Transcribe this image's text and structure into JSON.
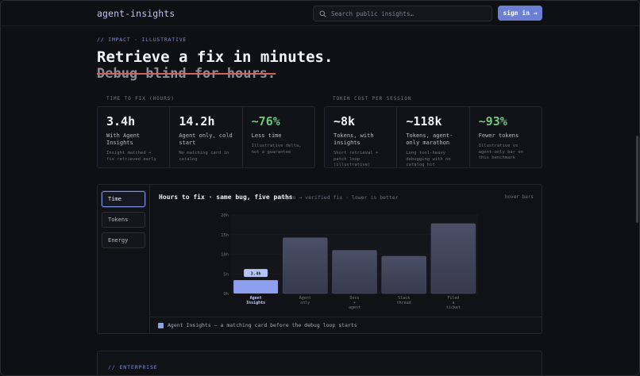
{
  "nav": {
    "brand": "agent-insights",
    "search_placeholder": "Search public insights…",
    "signin_label": "sign in →"
  },
  "hero": {
    "kicker": "// IMPACT · ILLUSTRATIVE",
    "headline": "Retrieve a fix in minutes.",
    "struck": "Debug blind for hours."
  },
  "time_section": {
    "label": "TIME TO FIX (HOURS)",
    "stats": [
      {
        "value": "3.4h",
        "label": "With Agent Insights",
        "sub": "Insight matched → fix retrieved early",
        "green": false
      },
      {
        "value": "14.2h",
        "label": "Agent only, cold start",
        "sub": "No matching card in catalog",
        "green": false
      },
      {
        "value": "~76%",
        "label": "Less time",
        "sub": "Illustrative delta, not a guarantee",
        "green": true
      }
    ]
  },
  "token_section": {
    "label": "TOKEN COST PER SESSION",
    "stats": [
      {
        "value": "~8k",
        "label": "Tokens, with insights",
        "sub": "Short retrieval + patch loop (illustrative)",
        "green": false
      },
      {
        "value": "~118k",
        "label": "Tokens, agent-only marathon",
        "sub": "Long tool-heavy debugging with no catalog hit",
        "green": false
      },
      {
        "value": "~93%",
        "label": "Fewer tokens",
        "sub": "Illustrative vs agent-only bar on this benchmark",
        "green": true
      }
    ]
  },
  "chart_panel": {
    "tabs": [
      "Time",
      "Tokens",
      "Energy"
    ],
    "active_tab": "Time",
    "title": "Hours to fix · same bug, five paths",
    "subtitle": "repro → verified fix · lower is better",
    "hint": "hover bars",
    "legend": "Agent Insights — a matching card before the debug loop starts"
  },
  "chart_data": {
    "type": "bar",
    "categories": [
      [
        "Agent",
        "Insights"
      ],
      [
        "Agent",
        "only"
      ],
      [
        "Docs",
        "+",
        "agent"
      ],
      [
        "Slack",
        "thread"
      ],
      [
        "Filed",
        "a",
        "ticket"
      ]
    ],
    "values": [
      3.4,
      14.2,
      11,
      9.5,
      17.8
    ],
    "highlight_index": 0,
    "highlight_label": "3.4h",
    "ylim": [
      0,
      20
    ],
    "yticks": [
      "0h",
      "5h",
      "10h",
      "15h",
      "20h"
    ],
    "ytick_values": [
      0,
      5,
      10,
      15,
      20
    ],
    "colors": {
      "highlight": "#8da0f0",
      "bar": "#363a4c",
      "bar_top": "#4a4f66"
    }
  },
  "enterprise": {
    "label": "// ENTERPRISE"
  }
}
